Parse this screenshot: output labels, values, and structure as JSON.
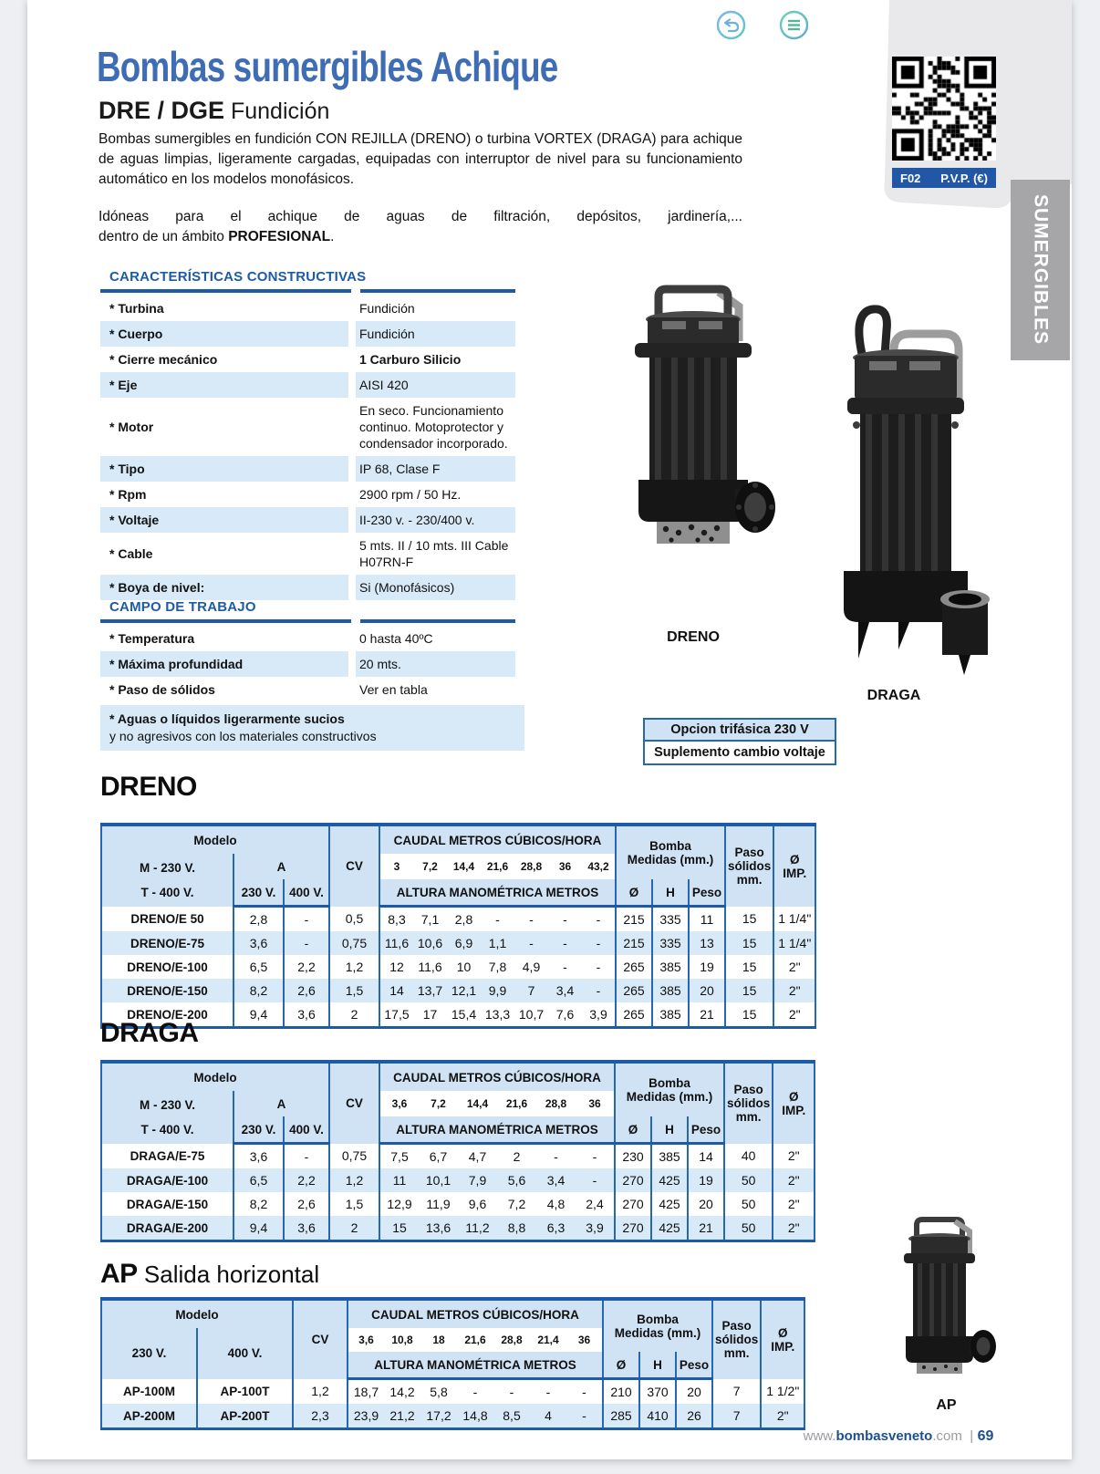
{
  "page": {
    "title": "Bombas sumergibles Achique",
    "subtitle_bold": "DRE / DGE",
    "subtitle_regular": " Fundición",
    "para1": "Bombas sumergibles en fundición CON REJILLA (DRENO) o turbina VORTEX (DRAGA) para achique de aguas limpias, ligeramente cargadas, equipadas con interruptor de nivel para su funcionamiento automático en los modelos monofásicos.",
    "para2_line1": "Idóneas para el achique de aguas de filtración, depósitos, jardinería,...",
    "para2_line2_pre": "dentro de un ámbito ",
    "para2_line2_bold": "PROFESIONAL",
    "para2_line2_post": "."
  },
  "ref_box": {
    "code": "F02",
    "pvp": "P.V.P. (€)"
  },
  "side_tab": "SUMERGIBLES",
  "caracteristicas": {
    "heading": "CARACTERÍSTICAS CONSTRUCTIVAS",
    "rows": [
      {
        "label": "* Turbina",
        "value": "Fundición"
      },
      {
        "label": "* Cuerpo",
        "value": "Fundición"
      },
      {
        "label": "* Cierre mecánico",
        "value": "1 Carburo Silicio",
        "value_bold": true
      },
      {
        "label": "* Eje",
        "value": "AISI 420"
      },
      {
        "label": "* Motor",
        "value": "En seco. Funcionamiento continuo. Motoprotector y condensador incorporado."
      },
      {
        "label": "* Tipo",
        "value": "IP 68, Clase F"
      },
      {
        "label": "* Rpm",
        "value": "2900 rpm / 50 Hz."
      },
      {
        "label": "* Voltaje",
        "value": "II-230 v. - 230/400 v."
      },
      {
        "label": "* Cable",
        "value": "5 mts. II / 10 mts. III Cable H07RN-F"
      },
      {
        "label": "* Boya de nivel:",
        "value": "Si (Monofásicos)"
      }
    ]
  },
  "campo": {
    "heading": "CAMPO DE TRABAJO",
    "rows": [
      {
        "label": "* Temperatura",
        "value": "0 hasta 40ºC"
      },
      {
        "label": "* Máxima profundidad",
        "value": "20 mts."
      },
      {
        "label": "* Paso de sólidos",
        "value": "Ver en tabla"
      }
    ],
    "note_line1": "* Aguas o líquidos ligerarmente sucios",
    "note_line2": "y no agresivos con los materiales constructivos"
  },
  "figures": {
    "dreno_label": "DRENO",
    "draga_label": "DRAGA",
    "ap_label": "AP"
  },
  "option_box": {
    "header": "Opcion trifásica 230 V",
    "body": "Suplemento cambio voltaje"
  },
  "table_labels": {
    "modelo": "Modelo",
    "m230": "M - 230 V.",
    "t400": "T - 400 V.",
    "a": "A",
    "v230": "230 V.",
    "v400": "400 V.",
    "cv": "CV",
    "caudal": "CAUDAL METROS CÚBICOS/HORA",
    "altura": "ALTURA MANOMÉTRICA METROS",
    "bomba1": "Bomba",
    "bomba2": "Medidas (mm.)",
    "paso1": "Paso",
    "paso2": "sólidos",
    "paso3": "mm.",
    "diam": "Ø",
    "h": "H",
    "peso": "Peso",
    "imp1": "Ø",
    "imp2": "IMP."
  },
  "tables": {
    "dreno": {
      "title": "DRENO",
      "caudal": [
        "3",
        "7,2",
        "14,4",
        "21,6",
        "28,8",
        "36",
        "43,2"
      ],
      "rows": [
        {
          "model": "DRENO/E 50",
          "a230": "2,8",
          "a400": "-",
          "cv": "0,5",
          "caudal": [
            "8,3",
            "7,1",
            "2,8",
            "-",
            "-",
            "-",
            "-"
          ],
          "d": "215",
          "h": "335",
          "peso": "11",
          "paso": "15",
          "imp": "1 1/4\""
        },
        {
          "model": "DRENO/E-75",
          "a230": "3,6",
          "a400": "-",
          "cv": "0,75",
          "caudal": [
            "11,6",
            "10,6",
            "6,9",
            "1,1",
            "-",
            "-",
            "-"
          ],
          "d": "215",
          "h": "335",
          "peso": "13",
          "paso": "15",
          "imp": "1 1/4\""
        },
        {
          "model": "DRENO/E-100",
          "a230": "6,5",
          "a400": "2,2",
          "cv": "1,2",
          "caudal": [
            "12",
            "11,6",
            "10",
            "7,8",
            "4,9",
            "-",
            "-"
          ],
          "d": "265",
          "h": "385",
          "peso": "19",
          "paso": "15",
          "imp": "2\""
        },
        {
          "model": "DRENO/E-150",
          "a230": "8,2",
          "a400": "2,6",
          "cv": "1,5",
          "caudal": [
            "14",
            "13,7",
            "12,1",
            "9,9",
            "7",
            "3,4",
            "-"
          ],
          "d": "265",
          "h": "385",
          "peso": "20",
          "paso": "15",
          "imp": "2\""
        },
        {
          "model": "DRENO/E-200",
          "a230": "9,4",
          "a400": "3,6",
          "cv": "2",
          "caudal": [
            "17,5",
            "17",
            "15,4",
            "13,3",
            "10,7",
            "7,6",
            "3,9"
          ],
          "d": "265",
          "h": "385",
          "peso": "21",
          "paso": "15",
          "imp": "2\""
        }
      ]
    },
    "draga": {
      "title": "DRAGA",
      "caudal": [
        "3,6",
        "7,2",
        "14,4",
        "21,6",
        "28,8",
        "36"
      ],
      "rows": [
        {
          "model": "DRAGA/E-75",
          "a230": "3,6",
          "a400": "-",
          "cv": "0,75",
          "caudal": [
            "7,5",
            "6,7",
            "4,7",
            "2",
            "-",
            "-"
          ],
          "d": "230",
          "h": "385",
          "peso": "14",
          "paso": "40",
          "imp": "2\""
        },
        {
          "model": "DRAGA/E-100",
          "a230": "6,5",
          "a400": "2,2",
          "cv": "1,2",
          "caudal": [
            "11",
            "10,1",
            "7,9",
            "5,6",
            "3,4",
            "-"
          ],
          "d": "270",
          "h": "425",
          "peso": "19",
          "paso": "50",
          "imp": "2\""
        },
        {
          "model": "DRAGA/E-150",
          "a230": "8,2",
          "a400": "2,6",
          "cv": "1,5",
          "caudal": [
            "12,9",
            "11,9",
            "9,6",
            "7,2",
            "4,8",
            "2,4"
          ],
          "d": "270",
          "h": "425",
          "peso": "20",
          "paso": "50",
          "imp": "2\""
        },
        {
          "model": "DRAGA/E-200",
          "a230": "9,4",
          "a400": "3,6",
          "cv": "2",
          "caudal": [
            "15",
            "13,6",
            "11,2",
            "8,8",
            "6,3",
            "3,9"
          ],
          "d": "270",
          "h": "425",
          "peso": "21",
          "paso": "50",
          "imp": "2\""
        }
      ]
    },
    "ap": {
      "title_bold": "AP",
      "title_rest": " Salida horizontal",
      "caudal": [
        "3,6",
        "10,8",
        "18",
        "21,6",
        "28,8",
        "21,4",
        "36"
      ],
      "rows": [
        {
          "m230": "AP-100M",
          "m400": "AP-100T",
          "cv": "1,2",
          "caudal": [
            "18,7",
            "14,2",
            "5,8",
            "-",
            "-",
            "-",
            "-"
          ],
          "d": "210",
          "h": "370",
          "peso": "20",
          "paso": "7",
          "imp": "1 1/2\""
        },
        {
          "m230": "AP-200M",
          "m400": "AP-200T",
          "cv": "2,3",
          "caudal": [
            "23,9",
            "21,2",
            "17,2",
            "14,8",
            "8,5",
            "4",
            "-"
          ],
          "d": "285",
          "h": "410",
          "peso": "26",
          "paso": "7",
          "imp": "2\""
        }
      ]
    }
  },
  "footer": {
    "www": "www.",
    "domain": "bombasveneto",
    "com": ".com",
    "sep": "|",
    "page_num": "69"
  }
}
